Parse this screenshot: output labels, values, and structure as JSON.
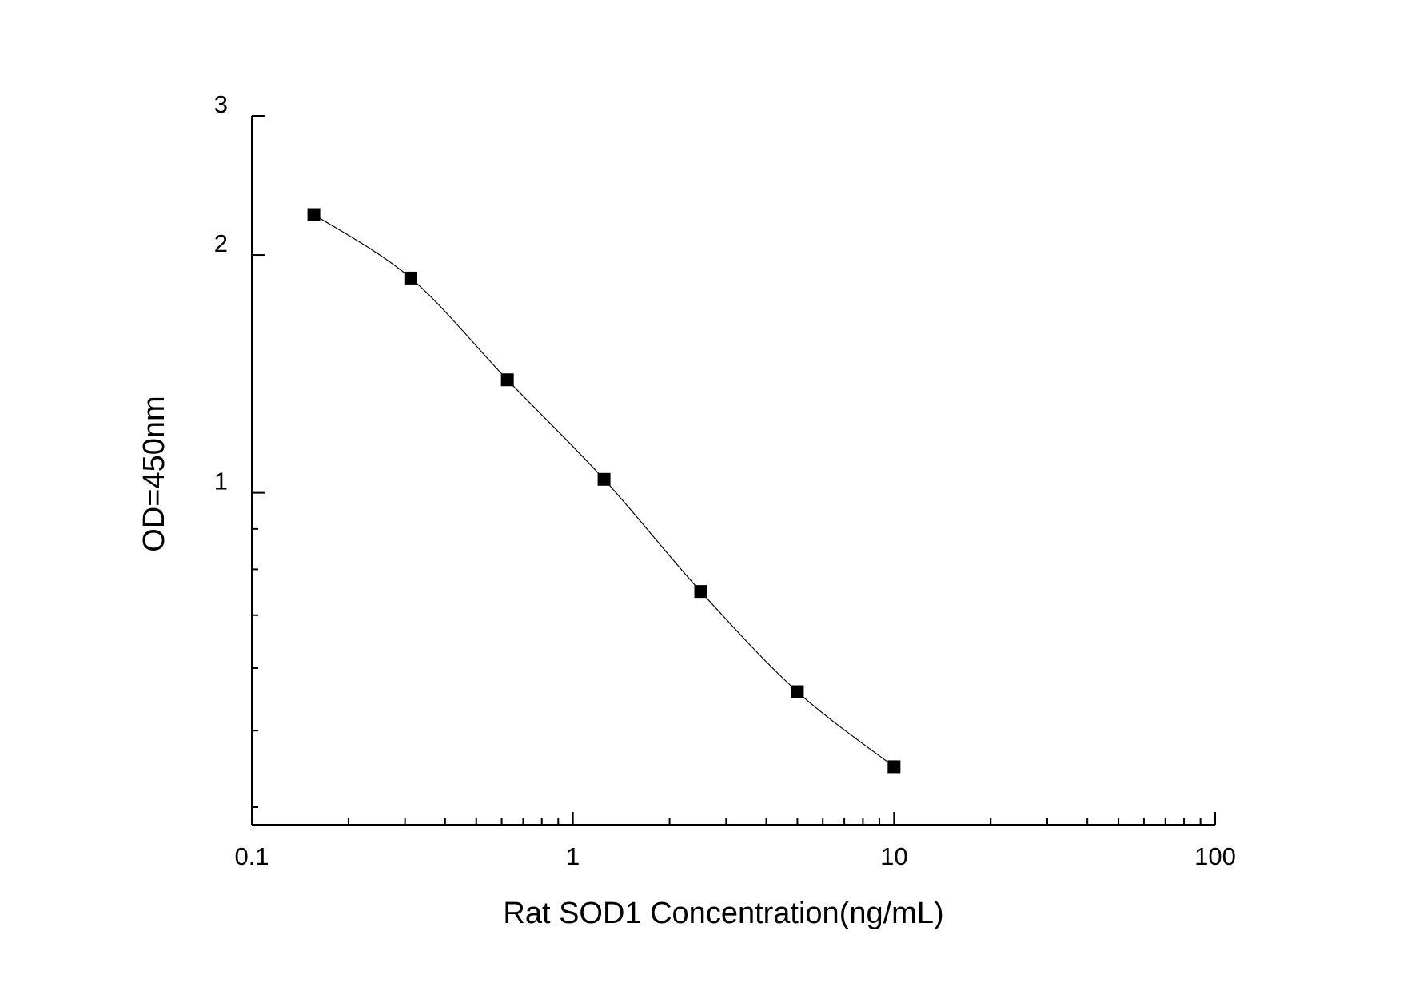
{
  "chart_data": {
    "type": "line",
    "xlabel": "Rat SOD1 Concentration(ng/mL)",
    "ylabel": "OD=450nm",
    "x_scale": "log",
    "y_scale": "log",
    "xlim": [
      0.1,
      100
    ],
    "ylim": [
      0.38,
      3
    ],
    "x_ticks": [
      {
        "value": 0.1,
        "label": "0.1"
      },
      {
        "value": 1,
        "label": "1"
      },
      {
        "value": 10,
        "label": "10"
      },
      {
        "value": 100,
        "label": "100"
      }
    ],
    "y_ticks": [
      {
        "value": 1,
        "label": "1"
      },
      {
        "value": 2,
        "label": "2"
      },
      {
        "value": 3,
        "label": "3"
      }
    ],
    "grid": false,
    "legend": "none",
    "marker": "square",
    "color": "#000000",
    "series": [
      {
        "x": [
          0.156,
          0.3125,
          0.625,
          1.25,
          2.5,
          5,
          10
        ],
        "y": [
          2.25,
          1.87,
          1.39,
          1.04,
          0.75,
          0.56,
          0.45
        ]
      }
    ]
  }
}
